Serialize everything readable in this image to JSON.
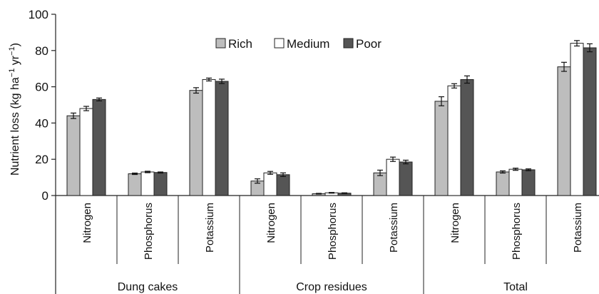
{
  "chart_data": {
    "type": "bar",
    "title": "",
    "ylabel": "Nutrient loss (kg ha⁻¹ yr⁻¹)",
    "ylabel_parts": [
      "Nutrient loss (kg ha",
      "−1",
      " yr",
      "−1",
      ")"
    ],
    "ylim": [
      0,
      100
    ],
    "yticks": [
      "0",
      "20",
      "40",
      "60",
      "80",
      "100"
    ],
    "grid": false,
    "legend_position": "top-center",
    "groups": [
      "Dung cakes",
      "Crop residues",
      "Total"
    ],
    "subcategories": [
      "Nitrogen",
      "Phosphorus",
      "Potassium"
    ],
    "series": [
      {
        "name": "Rich",
        "color": "#bdbdbd",
        "values": [
          44,
          12,
          58,
          8,
          1,
          12.5,
          52,
          13,
          71
        ],
        "errors": [
          1.5,
          0.4,
          1.5,
          1.2,
          0.2,
          1.5,
          2.5,
          0.6,
          2.5
        ]
      },
      {
        "name": "Medium",
        "color": "#ffffff",
        "values": [
          48,
          13,
          64,
          12.5,
          1.5,
          20,
          60.5,
          14.5,
          84
        ],
        "errors": [
          1.2,
          0.4,
          0.8,
          0.8,
          0.2,
          1.2,
          1.2,
          0.6,
          1.5
        ]
      },
      {
        "name": "Poor",
        "color": "#555555",
        "values": [
          53,
          12.7,
          63,
          11.5,
          1.3,
          18.5,
          64,
          14.2,
          81.5
        ],
        "errors": [
          0.8,
          0.3,
          1.2,
          1.0,
          0.2,
          1.0,
          2.0,
          0.5,
          2.2
        ]
      }
    ]
  }
}
